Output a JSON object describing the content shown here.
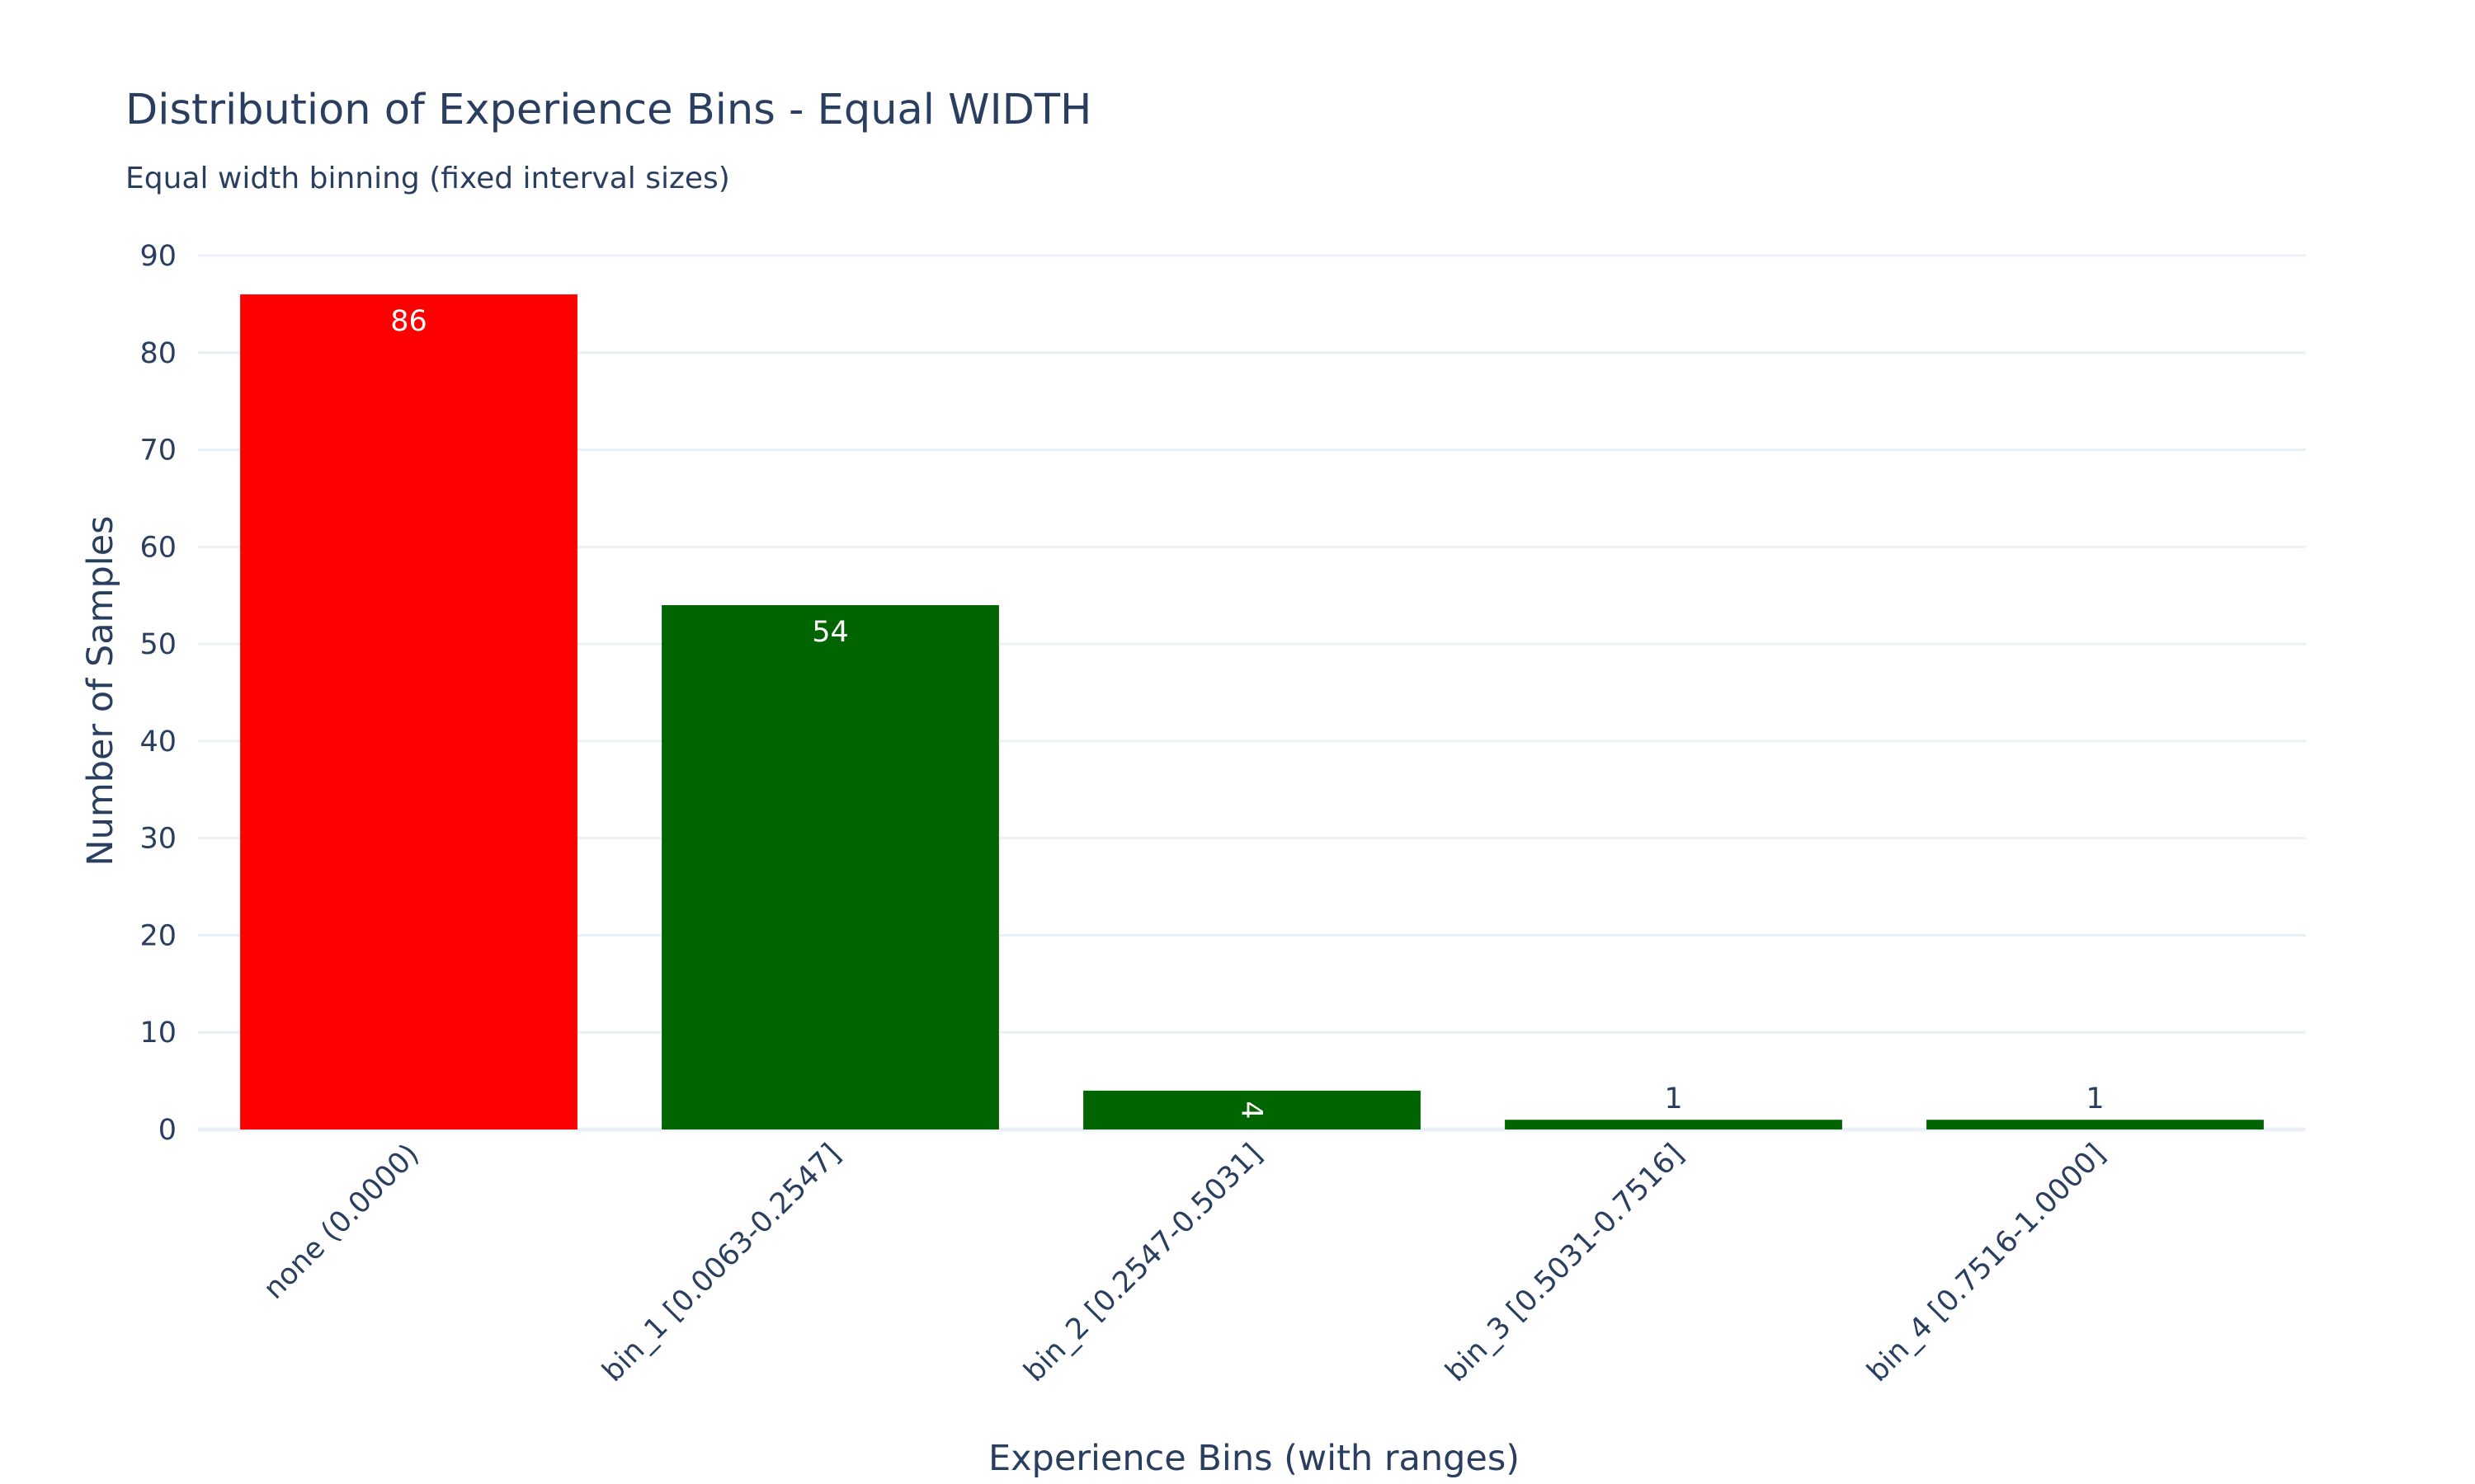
{
  "chart_data": {
    "type": "bar",
    "title": "Distribution of Experience Bins - Equal WIDTH",
    "subtitle": "Equal width binning (fixed interval sizes)",
    "xlabel": "Experience Bins (with ranges)",
    "ylabel": "Number of Samples",
    "categories": [
      "none (0.0000)",
      "bin_1 [0.0063-0.2547]",
      "bin_2 [0.2547-0.5031]",
      "bin_3 [0.5031-0.7516]",
      "bin_4 [0.7516-1.0000]"
    ],
    "values": [
      86,
      54,
      4,
      1,
      1
    ],
    "data_labels": [
      "86",
      "54",
      "4",
      "1",
      "1"
    ],
    "bar_colors": [
      "#ff0000",
      "#006400",
      "#006400",
      "#006400",
      "#006400"
    ],
    "ylim": [
      0,
      90
    ],
    "yticks": [
      0,
      10,
      20,
      30,
      40,
      50,
      60,
      70,
      80,
      90
    ],
    "grid": true,
    "legend": "none"
  }
}
